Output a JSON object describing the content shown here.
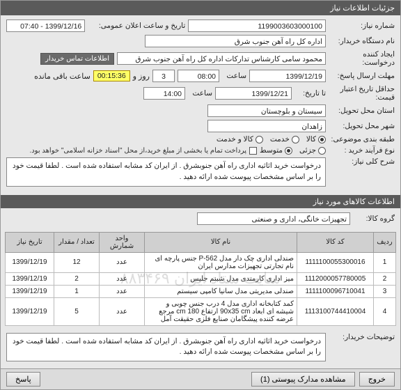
{
  "header": {
    "title": "جزئیات اطلاعات نیاز"
  },
  "form": {
    "need_no_label": "شماره نیاز:",
    "need_no": "1199003603000100",
    "announce_label": "تاریخ و ساعت اعلان عمومی:",
    "announce_value": "1399/12/16 - 07:40",
    "buyer_org_label": "نام دستگاه خریدار:",
    "buyer_org": "اداره کل راه آهن جنوب شرق",
    "creator_label": "ایجاد کننده درخواست:",
    "creator": "محمود سامی  کارشناس تدارکات  اداره کل راه آهن جنوب شرق",
    "contact_btn": "اطلاعات تماس خریدار",
    "deadline_label": "مهلت ارسال پاسخ:",
    "deadline_date": "1399/12/19",
    "hour_label": "ساعت",
    "deadline_time": "08:00",
    "days_val": "3",
    "day_word": "روز و",
    "countdown": "00:15:36",
    "remain_label": "ساعت باقی مانده",
    "validity_label": "حداقل تاریخ اعتبار قیمت:",
    "until_label": "تا تاریخ:",
    "validity_date": "1399/12/21",
    "validity_time": "14:00",
    "province_label": "استان محل تحویل:",
    "province": "سیستان و بلوچستان",
    "city_label": "شهر محل تحویل:",
    "city": "زاهدان",
    "budget_label": "طبقه بندی موضوعی:",
    "budget_opts": {
      "goods": "کالا",
      "service": "خدمت",
      "goods_service": "کالا و خدمت"
    },
    "process_label": "نوع فرآیند خرید :",
    "process_opts": {
      "small": "جزئی",
      "medium": "متوسط"
    },
    "process_note": "پرداخت تمام یا بخشی از مبلغ خرید،از محل \"اسناد خزانه اسلامی\" خواهد بود.",
    "desc_label": "شرح کلی نیاز:",
    "desc_text": "درخواست خرید اثاثیه اداری راه آهن جنوبشرق . از ایران کد مشابه استفاده شده است . لطفا قیمت خود را بر اساس مشخصات پیوست شده ارائه دهید ."
  },
  "section_items": "اطلاعات کالاهای مورد نیاز",
  "group_label": "گروه کالا:",
  "group_value": "تجهیزات خانگی، اداری و صنعتی",
  "table": {
    "cols": [
      "ردیف",
      "کد کالا",
      "نام کالا",
      "واحد شمارش",
      "تعداد / مقدار",
      "تاریخ نیاز"
    ],
    "rows": [
      [
        "1",
        "1111100055300016",
        "صندلی اداری چک دار مدل P-562 جنس پارچه ای نام تجارتی تجهیزات مدارس ایران",
        "عدد",
        "12",
        "1399/12/19"
      ],
      [
        "2",
        "1112000057780005",
        "میز اداری کارمندی مدل شبنم جلیس",
        "عدد",
        "2",
        "1399/12/19"
      ],
      [
        "3",
        "1111100096710041",
        "صندلی مدیریتی مدل سانیا کامپی سیستم",
        "عدد",
        "1",
        "1399/12/19"
      ],
      [
        "4",
        "1113100744410004",
        "کمد کتابخانه اداری مدل 4 درب جنس چوبی و شیشه ای ابعاد 90x35 cm ارتفاع 180 cm مرجع عرضه کننده پیشگامان صنایع فلزی حقیقت آمل",
        "عدد",
        "5",
        "1399/12/19"
      ]
    ]
  },
  "watermark": "سایت ستاد ایران ۸۸۳۴۶۹",
  "buyer_notes_label": "توضیحات خریدار:",
  "buyer_notes": "درخواست خرید اثاثیه اداری راه آهن جنوبشرق . از ایران کد مشابه استفاده شده است . لطفا قیمت خود را بر اساس مشخصات پیوست شده ارائه دهید .",
  "footer": {
    "exit": "خروج",
    "attachments": "مشاهده مدارک پیوستی (1)",
    "reply": "پاسخ"
  }
}
